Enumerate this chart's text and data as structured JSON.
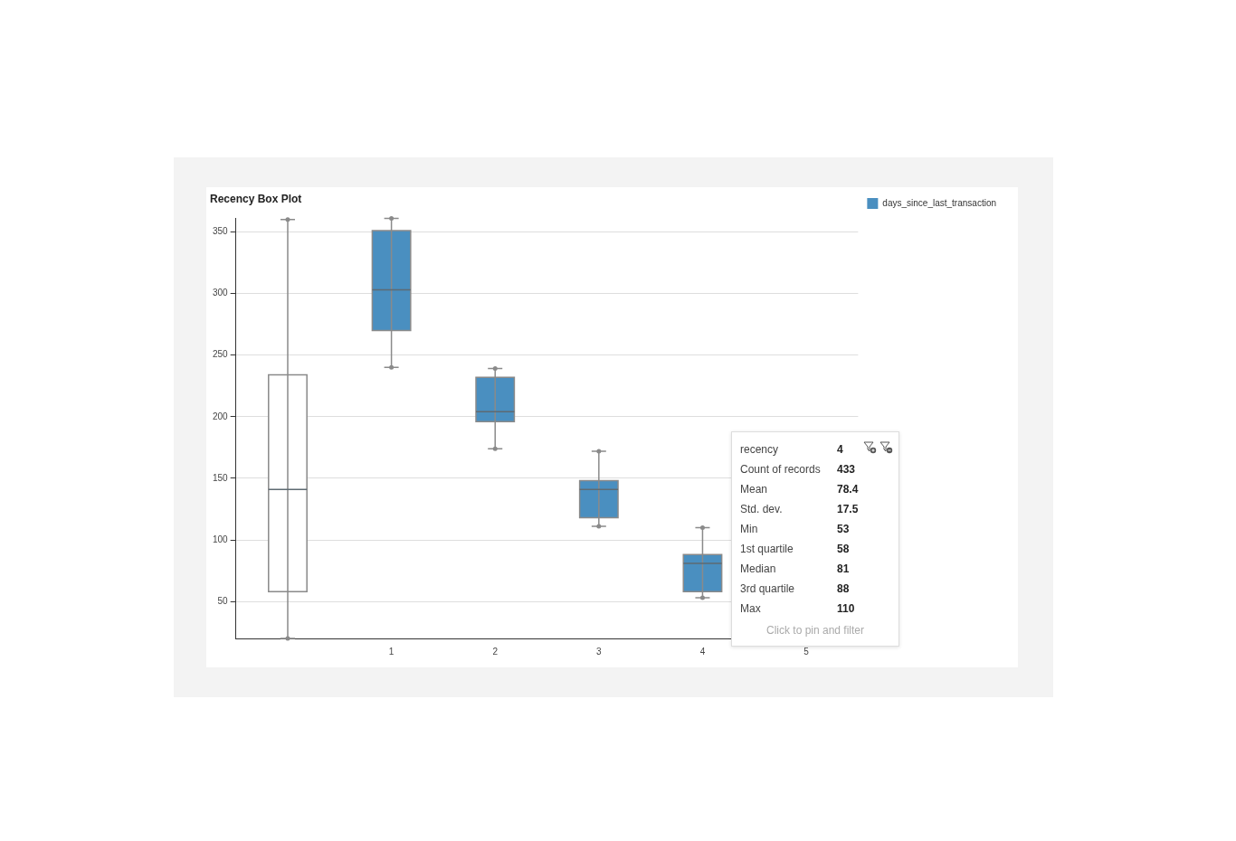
{
  "chart_data": {
    "type": "box",
    "title": "Recency Box Plot",
    "categories": [
      null,
      "1",
      "2",
      "3",
      "4",
      "5"
    ],
    "series": [
      {
        "color": "#ffffff",
        "boxes": [
          {
            "low": 20,
            "q1": 58,
            "median": 141,
            "q3": 234,
            "high": 360
          },
          null,
          null,
          null,
          null,
          null
        ]
      },
      {
        "name": "days_since_last_transaction",
        "color": "#4a8fc0",
        "boxes": [
          null,
          {
            "low": 240,
            "q1": 270,
            "median": 303,
            "q3": 351,
            "high": 361
          },
          {
            "low": 174,
            "q1": 196,
            "median": 204,
            "q3": 232,
            "high": 239
          },
          {
            "low": 111,
            "q1": 118,
            "median": 141,
            "q3": 148,
            "high": 172
          },
          {
            "low": 53,
            "q1": 58,
            "median": 81,
            "q3": 88,
            "high": 110
          },
          null
        ]
      }
    ],
    "ylim": [
      20,
      361
    ],
    "yticks": [
      50,
      100,
      150,
      200,
      250,
      300,
      350
    ],
    "grid": "y",
    "legend": "top right",
    "annotations": [
      "recency",
      "4",
      "Count of records",
      "433",
      "Mean",
      "78.4",
      "Std. dev.",
      "17.5",
      "Min",
      "53",
      "1st quartile",
      "58",
      "Median",
      "81",
      "3rd quartile",
      "88",
      "Max",
      "110",
      "Click to pin and filter"
    ]
  }
}
